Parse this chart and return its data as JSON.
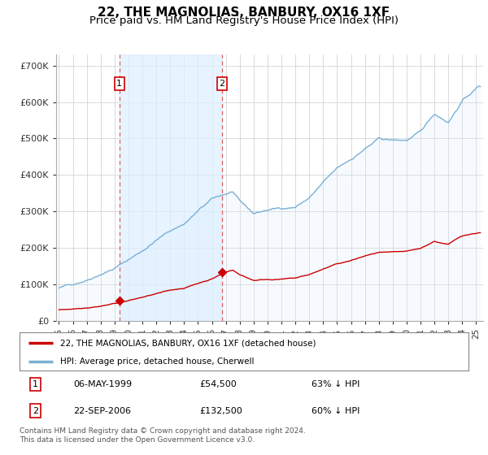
{
  "title": "22, THE MAGNOLIAS, BANBURY, OX16 1XF",
  "subtitle": "Price paid vs. HM Land Registry's House Price Index (HPI)",
  "title_fontsize": 11,
  "subtitle_fontsize": 9.5,
  "ylabel_ticks": [
    "£0",
    "£100K",
    "£200K",
    "£300K",
    "£400K",
    "£500K",
    "£600K",
    "£700K"
  ],
  "ytick_values": [
    0,
    100000,
    200000,
    300000,
    400000,
    500000,
    600000,
    700000
  ],
  "ylim": [
    0,
    730000
  ],
  "xlim_start": 1994.8,
  "xlim_end": 2025.5,
  "sale1_year": 1999.35,
  "sale1_price": 54500,
  "sale2_year": 2006.72,
  "sale2_price": 132500,
  "sale_marker_color": "#cc0000",
  "hpi_line_color": "#7ab0d4",
  "hpi_fill_color": "#ddeeff",
  "red_line_color": "#cc0000",
  "vline_color": "#e06060",
  "legend_label_red": "22, THE MAGNOLIAS, BANBURY, OX16 1XF (detached house)",
  "legend_label_blue": "HPI: Average price, detached house, Cherwell",
  "table_row1": [
    "1",
    "06-MAY-1999",
    "£54,500",
    "63% ↓ HPI"
  ],
  "table_row2": [
    "2",
    "22-SEP-2006",
    "£132,500",
    "60% ↓ HPI"
  ],
  "footnote": "Contains HM Land Registry data © Crown copyright and database right 2024.\nThis data is licensed under the Open Government Licence v3.0.",
  "background_color": "#ffffff",
  "plot_bg_color": "#ffffff",
  "grid_color": "#cccccc"
}
